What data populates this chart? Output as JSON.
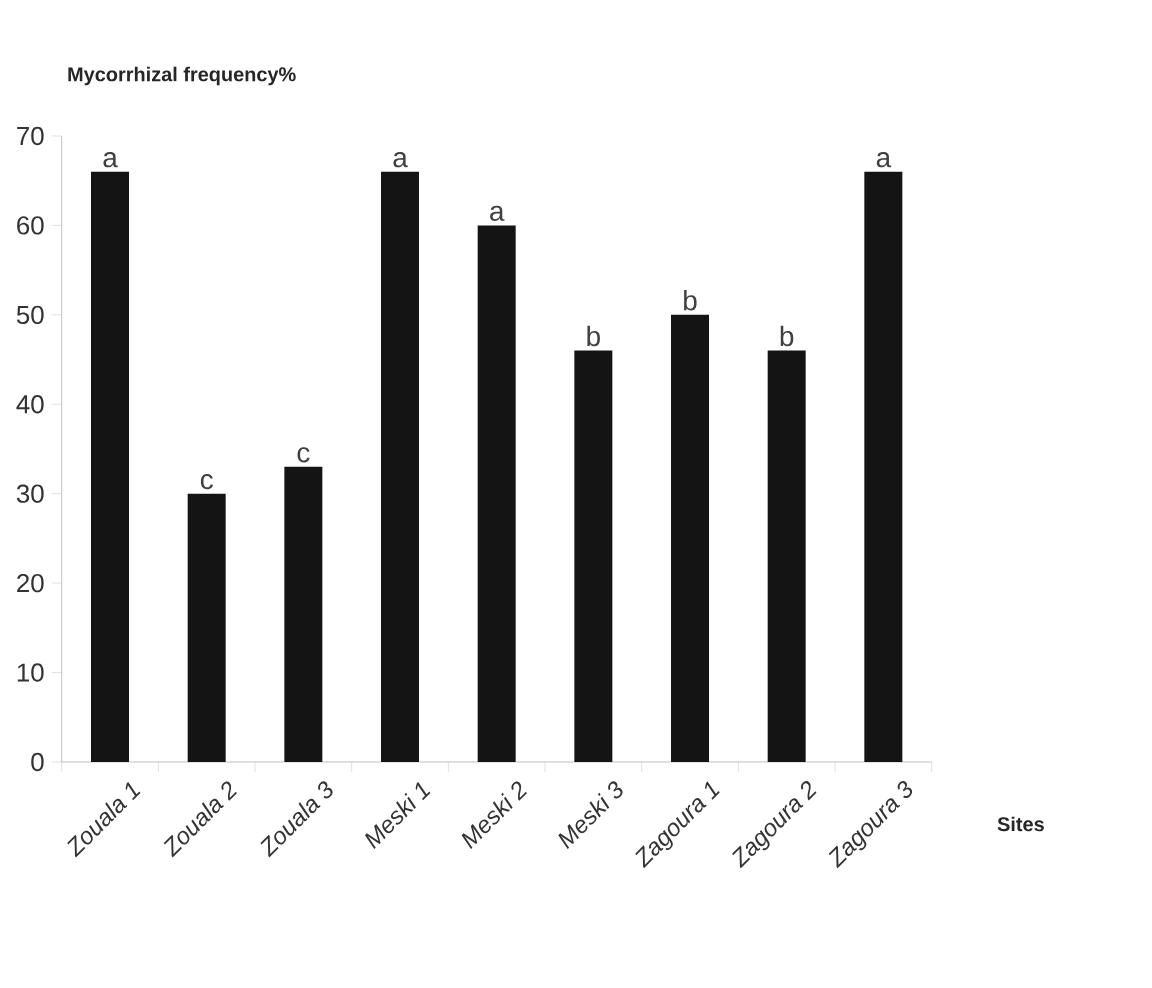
{
  "chart_data": {
    "type": "bar",
    "ylabel": "Mycorrhizal frequency%",
    "xlabel": "Sites",
    "categories": [
      "Zouala 1",
      "Zouala 2",
      "Zouala 3",
      "Meski 1",
      "Meski 2",
      "Meski 3",
      "Zagoura 1",
      "Zagoura 2",
      "Zagoura 3"
    ],
    "values": [
      66,
      30,
      33,
      66,
      60,
      46,
      50,
      46,
      66
    ],
    "value_labels": [
      "a",
      "c",
      "c",
      "a",
      "a",
      "b",
      "b",
      "b",
      "a"
    ],
    "color": "#141414",
    "ylim": [
      0,
      70
    ],
    "yticks": [
      0,
      10,
      20,
      30,
      40,
      50,
      60,
      70
    ]
  }
}
